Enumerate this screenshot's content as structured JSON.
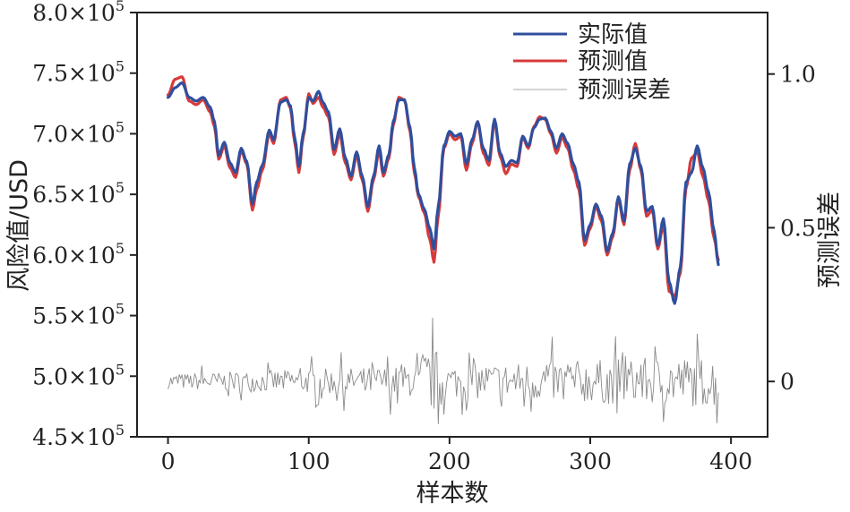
{
  "chart_data": {
    "type": "line",
    "xlabel": "样本数",
    "ylabel": "风险值/USD",
    "y2label": "预测误差",
    "xlim": [
      -22,
      426
    ],
    "ylim": [
      450000,
      800000
    ],
    "y2lim": [
      -0.18,
      1.2
    ],
    "xticks": [
      {
        "value": 0,
        "label": "0"
      },
      {
        "value": 100,
        "label": "100"
      },
      {
        "value": 200,
        "label": "200"
      },
      {
        "value": 300,
        "label": "300"
      },
      {
        "value": 400,
        "label": "400"
      }
    ],
    "yticks": [
      {
        "value": 450000,
        "mantissa": "4.5×10",
        "exp": "5"
      },
      {
        "value": 500000,
        "mantissa": "5.0×10",
        "exp": "5"
      },
      {
        "value": 550000,
        "mantissa": "5.5×10",
        "exp": "5"
      },
      {
        "value": 600000,
        "mantissa": "6.0×10",
        "exp": "5"
      },
      {
        "value": 650000,
        "mantissa": "6.5×10",
        "exp": "5"
      },
      {
        "value": 700000,
        "mantissa": "7.0×10",
        "exp": "5"
      },
      {
        "value": 750000,
        "mantissa": "7.5×10",
        "exp": "5"
      },
      {
        "value": 800000,
        "mantissa": "8.0×10",
        "exp": "5"
      }
    ],
    "y2ticks": [
      {
        "value": 0,
        "label": "0"
      },
      {
        "value": 0.5,
        "label": "0.5"
      },
      {
        "value": 1.0,
        "label": "1.0"
      }
    ],
    "legend_position": "top-right",
    "series": [
      {
        "name": "实际值",
        "color": "#2f4f9e",
        "axis": "left",
        "points": [
          [
            0,
            730000
          ],
          [
            5,
            738000
          ],
          [
            10,
            742000
          ],
          [
            15,
            730000
          ],
          [
            20,
            727000
          ],
          [
            25,
            730000
          ],
          [
            30,
            722000
          ],
          [
            33,
            710000
          ],
          [
            36,
            682000
          ],
          [
            40,
            693000
          ],
          [
            44,
            676000
          ],
          [
            48,
            668000
          ],
          [
            52,
            688000
          ],
          [
            56,
            677000
          ],
          [
            60,
            642000
          ],
          [
            63,
            660000
          ],
          [
            67,
            674000
          ],
          [
            72,
            703000
          ],
          [
            75,
            695000
          ],
          [
            80,
            726000
          ],
          [
            84,
            728000
          ],
          [
            87,
            723000
          ],
          [
            90,
            697000
          ],
          [
            93,
            673000
          ],
          [
            96,
            700000
          ],
          [
            100,
            730000
          ],
          [
            103,
            727000
          ],
          [
            107,
            735000
          ],
          [
            110,
            726000
          ],
          [
            114,
            718000
          ],
          [
            118,
            687000
          ],
          [
            122,
            704000
          ],
          [
            126,
            680000
          ],
          [
            130,
            665000
          ],
          [
            134,
            685000
          ],
          [
            138,
            665000
          ],
          [
            142,
            640000
          ],
          [
            146,
            665000
          ],
          [
            150,
            690000
          ],
          [
            153,
            668000
          ],
          [
            157,
            683000
          ],
          [
            160,
            710000
          ],
          [
            164,
            728000
          ],
          [
            168,
            728000
          ],
          [
            172,
            705000
          ],
          [
            175,
            672000
          ],
          [
            178,
            650000
          ],
          [
            182,
            638000
          ],
          [
            186,
            622000
          ],
          [
            189,
            605000
          ],
          [
            192,
            640000
          ],
          [
            196,
            690000
          ],
          [
            200,
            702000
          ],
          [
            204,
            698000
          ],
          [
            208,
            700000
          ],
          [
            212,
            675000
          ],
          [
            216,
            695000
          ],
          [
            220,
            710000
          ],
          [
            224,
            688000
          ],
          [
            228,
            678000
          ],
          [
            232,
            712000
          ],
          [
            236,
            684000
          ],
          [
            240,
            673000
          ],
          [
            244,
            678000
          ],
          [
            248,
            676000
          ],
          [
            252,
            698000
          ],
          [
            256,
            690000
          ],
          [
            260,
            705000
          ],
          [
            264,
            712000
          ],
          [
            268,
            713000
          ],
          [
            272,
            702000
          ],
          [
            276,
            688000
          ],
          [
            280,
            700000
          ],
          [
            284,
            692000
          ],
          [
            288,
            675000
          ],
          [
            292,
            660000
          ],
          [
            296,
            612000
          ],
          [
            300,
            625000
          ],
          [
            304,
            642000
          ],
          [
            308,
            632000
          ],
          [
            312,
            603000
          ],
          [
            316,
            618000
          ],
          [
            320,
            648000
          ],
          [
            324,
            628000
          ],
          [
            328,
            675000
          ],
          [
            332,
            688000
          ],
          [
            336,
            673000
          ],
          [
            340,
            636000
          ],
          [
            344,
            640000
          ],
          [
            348,
            608000
          ],
          [
            352,
            630000
          ],
          [
            356,
            578000
          ],
          [
            360,
            560000
          ],
          [
            364,
            590000
          ],
          [
            368,
            660000
          ],
          [
            372,
            668000
          ],
          [
            376,
            690000
          ],
          [
            380,
            672000
          ],
          [
            384,
            652000
          ],
          [
            388,
            620000
          ],
          [
            391,
            592000
          ]
        ]
      },
      {
        "name": "预测值",
        "color": "#d63a3a",
        "axis": "left",
        "points": [
          [
            0,
            732000
          ],
          [
            5,
            745000
          ],
          [
            10,
            747000
          ],
          [
            15,
            727000
          ],
          [
            20,
            724000
          ],
          [
            25,
            728000
          ],
          [
            30,
            718000
          ],
          [
            33,
            706000
          ],
          [
            36,
            679000
          ],
          [
            40,
            690000
          ],
          [
            44,
            672000
          ],
          [
            48,
            664000
          ],
          [
            52,
            686000
          ],
          [
            56,
            675000
          ],
          [
            60,
            637000
          ],
          [
            63,
            654000
          ],
          [
            67,
            670000
          ],
          [
            72,
            700000
          ],
          [
            75,
            692000
          ],
          [
            80,
            728000
          ],
          [
            84,
            730000
          ],
          [
            87,
            721000
          ],
          [
            90,
            693000
          ],
          [
            93,
            668000
          ],
          [
            96,
            697000
          ],
          [
            100,
            733000
          ],
          [
            103,
            725000
          ],
          [
            107,
            730000
          ],
          [
            110,
            722000
          ],
          [
            114,
            714000
          ],
          [
            118,
            683000
          ],
          [
            122,
            700000
          ],
          [
            126,
            676000
          ],
          [
            130,
            662000
          ],
          [
            134,
            682000
          ],
          [
            138,
            662000
          ],
          [
            142,
            636000
          ],
          [
            146,
            662000
          ],
          [
            150,
            686000
          ],
          [
            153,
            665000
          ],
          [
            157,
            680000
          ],
          [
            160,
            707000
          ],
          [
            164,
            730000
          ],
          [
            168,
            728000
          ],
          [
            172,
            702000
          ],
          [
            175,
            668000
          ],
          [
            178,
            648000
          ],
          [
            182,
            635000
          ],
          [
            186,
            613000
          ],
          [
            189,
            594000
          ],
          [
            192,
            632000
          ],
          [
            196,
            688000
          ],
          [
            200,
            700000
          ],
          [
            204,
            695000
          ],
          [
            208,
            698000
          ],
          [
            212,
            670000
          ],
          [
            216,
            692000
          ],
          [
            220,
            710000
          ],
          [
            224,
            684000
          ],
          [
            228,
            674000
          ],
          [
            232,
            710000
          ],
          [
            236,
            681000
          ],
          [
            240,
            667000
          ],
          [
            244,
            675000
          ],
          [
            248,
            673000
          ],
          [
            252,
            697000
          ],
          [
            256,
            688000
          ],
          [
            260,
            706000
          ],
          [
            264,
            714000
          ],
          [
            268,
            712000
          ],
          [
            272,
            700000
          ],
          [
            276,
            684000
          ],
          [
            280,
            697000
          ],
          [
            284,
            688000
          ],
          [
            288,
            670000
          ],
          [
            292,
            654000
          ],
          [
            296,
            608000
          ],
          [
            300,
            622000
          ],
          [
            304,
            640000
          ],
          [
            308,
            628000
          ],
          [
            312,
            600000
          ],
          [
            316,
            615000
          ],
          [
            320,
            646000
          ],
          [
            324,
            625000
          ],
          [
            328,
            670000
          ],
          [
            332,
            692000
          ],
          [
            336,
            670000
          ],
          [
            340,
            632000
          ],
          [
            344,
            637000
          ],
          [
            348,
            605000
          ],
          [
            352,
            625000
          ],
          [
            356,
            570000
          ],
          [
            360,
            566000
          ],
          [
            364,
            585000
          ],
          [
            368,
            655000
          ],
          [
            372,
            680000
          ],
          [
            376,
            685000
          ],
          [
            380,
            665000
          ],
          [
            384,
            645000
          ],
          [
            388,
            614000
          ],
          [
            391,
            596000
          ]
        ]
      },
      {
        "name": "预测误差",
        "color": "#8a8a8a",
        "axis": "right",
        "seed": 7,
        "n": 392
      }
    ]
  }
}
